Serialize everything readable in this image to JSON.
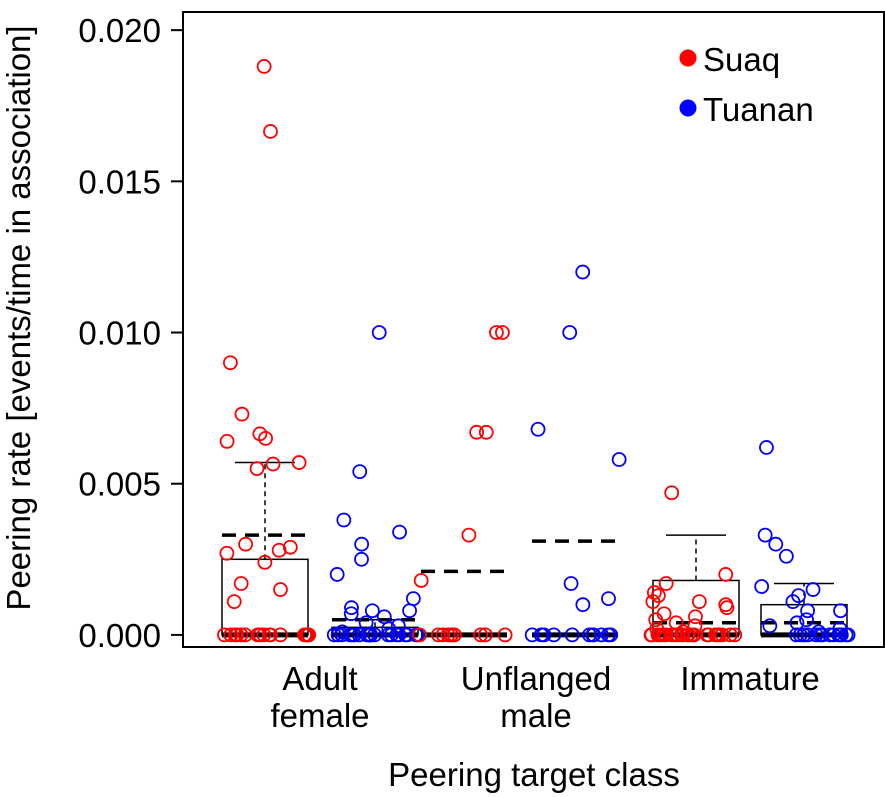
{
  "chart_data": {
    "type": "boxplot-with-jitter",
    "ylabel": "Peering rate [events/time in association]",
    "xlabel": "Peering target class",
    "ylim": [
      -0.0004,
      0.0206
    ],
    "yticks": [
      "0.000",
      "0.005",
      "0.010",
      "0.015",
      "0.020"
    ],
    "ytick_values": [
      0,
      0.005,
      0.01,
      0.015,
      0.02
    ],
    "categories": [
      {
        "line1": "Adult",
        "line2": "female"
      },
      {
        "line1": "Unflanged",
        "line2": "male"
      },
      {
        "line1": "Immature",
        "line2": ""
      }
    ],
    "legend": {
      "position": "top-right",
      "entries": [
        {
          "name": "Suaq",
          "color": "#ff0000"
        },
        {
          "name": "Tuanan",
          "color": "#0000ff"
        }
      ]
    },
    "groups": [
      {
        "category": "Adult female",
        "site": "Suaq",
        "color": "#ff0000",
        "box": {
          "q1": 0,
          "median": 0,
          "q3": 0.0025,
          "whisker_low": 0,
          "whisker_high": 0.0057
        },
        "mean": 0.0033,
        "points": [
          0.0188,
          0.01665,
          0.009,
          0.0073,
          0.00665,
          0.0065,
          0.0064,
          0.0057,
          0.00565,
          0.0055,
          0.003,
          0.0029,
          0.0028,
          0.0027,
          0.0024,
          0.0017,
          0.0015,
          0.0011,
          0,
          0,
          0,
          0,
          0,
          0,
          0,
          0,
          0,
          0,
          0,
          0,
          0,
          0,
          0,
          0,
          0,
          0
        ]
      },
      {
        "category": "Adult female",
        "site": "Tuanan",
        "color": "#0000ff",
        "box": {
          "q1": 0,
          "median": 0,
          "q3": 0.00025,
          "whisker_low": 0,
          "whisker_high": 0.0005
        },
        "mean": 0.0005,
        "points": [
          0.01,
          0.0054,
          0.0038,
          0.0034,
          0.003,
          0.0025,
          0.002,
          0.0012,
          0.0009,
          0.0008,
          0.0008,
          0.0007,
          0.0006,
          0.0004,
          0.0003,
          0.0002,
          0.0001,
          0,
          0,
          0,
          0,
          0,
          0,
          0,
          0,
          0,
          0,
          0,
          0,
          0,
          0,
          0,
          0,
          0,
          0,
          0,
          0,
          0,
          0,
          0
        ]
      },
      {
        "category": "Unflanged male",
        "site": "Suaq",
        "color": "#ff0000",
        "box": {
          "q1": 0,
          "median": 0,
          "q3": 0,
          "whisker_low": 0,
          "whisker_high": 0
        },
        "mean": 0.0021,
        "points": [
          0.01,
          0.01,
          0.0067,
          0.0067,
          0.0033,
          0.0018,
          0,
          0,
          0,
          0,
          0,
          0,
          0,
          0,
          0,
          0
        ]
      },
      {
        "category": "Unflanged male",
        "site": "Tuanan",
        "color": "#0000ff",
        "box": {
          "q1": 0,
          "median": 0,
          "q3": 0,
          "whisker_low": 0,
          "whisker_high": 0
        },
        "mean": 0.0031,
        "points": [
          0.012,
          0.01,
          0.0068,
          0.0058,
          0.0017,
          0.0012,
          0.001,
          0,
          0,
          0,
          0,
          0,
          0,
          0,
          0,
          0,
          0,
          0
        ]
      },
      {
        "category": "Immature",
        "site": "Suaq",
        "color": "#ff0000",
        "box": {
          "q1": 0,
          "median": 0,
          "q3": 0.0018,
          "whisker_low": 0,
          "whisker_high": 0.0033
        },
        "mean": 0.0004,
        "points": [
          0.0047,
          0.002,
          0.0017,
          0.0014,
          0.0013,
          0.0011,
          0.0011,
          0.001,
          0.0009,
          0.0007,
          0.0006,
          0.0005,
          0.0004,
          0.0003,
          0.0002,
          0.0001,
          0,
          0,
          0,
          0,
          0,
          0,
          0,
          0,
          0,
          0,
          0,
          0,
          0,
          0,
          0,
          0,
          0,
          0,
          0,
          0,
          0,
          0,
          0,
          0
        ]
      },
      {
        "category": "Immature",
        "site": "Tuanan",
        "color": "#0000ff",
        "box": {
          "q1": 0,
          "median": 0,
          "q3": 0.001,
          "whisker_low": 0,
          "whisker_high": 0.0017
        },
        "mean": 0.0004,
        "points": [
          0.0062,
          0.0033,
          0.003,
          0.0026,
          0.0016,
          0.0015,
          0.0013,
          0.0011,
          0.0008,
          0.0008,
          0.0005,
          0.0004,
          0.0003,
          0.0002,
          0.0001,
          0,
          0,
          0,
          0,
          0,
          0,
          0,
          0,
          0,
          0,
          0,
          0,
          0,
          0,
          0
        ]
      }
    ]
  }
}
